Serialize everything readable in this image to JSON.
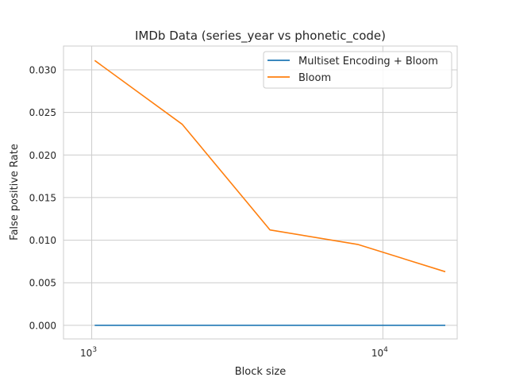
{
  "chart_data": {
    "type": "line",
    "title": "IMDb Data (series_year vs phonetic_code)",
    "xlabel": "Block size",
    "ylabel": "False positive Rate",
    "x_scale": "log",
    "xlim": [
      800,
      18000
    ],
    "ylim": [
      -0.0016,
      0.0328
    ],
    "grid": true,
    "legend_position": "top-right",
    "x_ticks": [
      {
        "value": 1000,
        "base": "10",
        "exp": "3"
      },
      {
        "value": 10000,
        "base": "10",
        "exp": "4"
      }
    ],
    "y_ticks": [
      {
        "value": 0.0,
        "label": "0.000"
      },
      {
        "value": 0.005,
        "label": "0.005"
      },
      {
        "value": 0.01,
        "label": "0.010"
      },
      {
        "value": 0.015,
        "label": "0.015"
      },
      {
        "value": 0.02,
        "label": "0.020"
      },
      {
        "value": 0.025,
        "label": "0.025"
      },
      {
        "value": 0.03,
        "label": "0.030"
      }
    ],
    "x": [
      1024,
      2048,
      4096,
      8192,
      16384
    ],
    "series": [
      {
        "name": "Multiset Encoding + Bloom",
        "color": "#1f77b4",
        "values": [
          0.0,
          0.0,
          0.0,
          0.0,
          0.0
        ]
      },
      {
        "name": "Bloom",
        "color": "#ff7f0e",
        "values": [
          0.0311,
          0.0236,
          0.0112,
          0.0095,
          0.0063
        ]
      }
    ]
  }
}
